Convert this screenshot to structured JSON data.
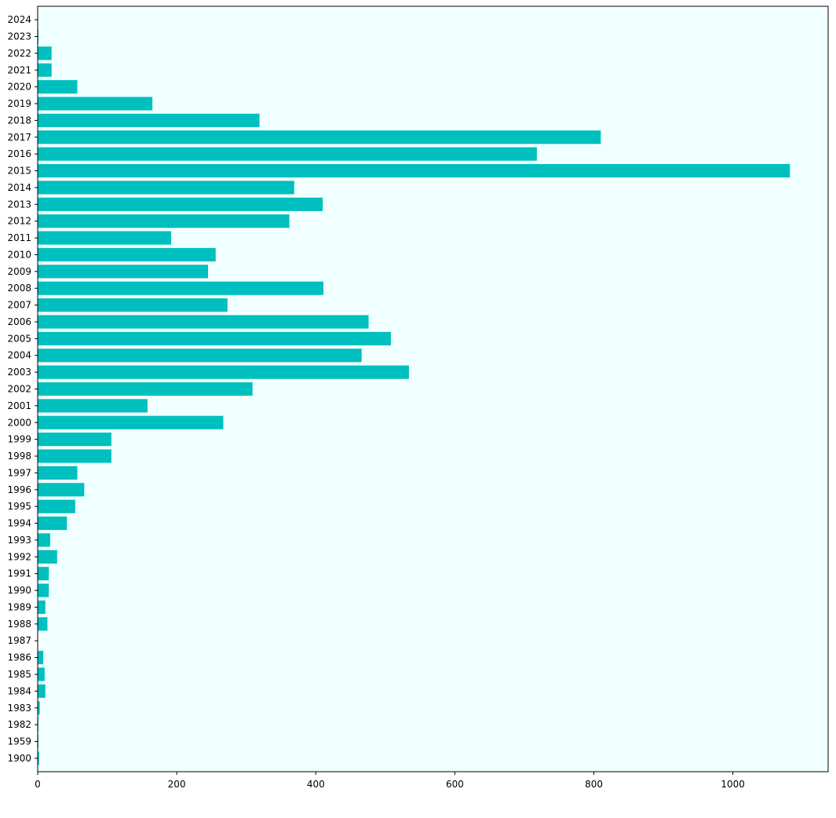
{
  "chart_data": {
    "type": "bar",
    "orientation": "horizontal",
    "categories": [
      "1900",
      "1959",
      "1982",
      "1983",
      "1984",
      "1985",
      "1986",
      "1987",
      "1988",
      "1989",
      "1990",
      "1991",
      "1992",
      "1993",
      "1994",
      "1995",
      "1996",
      "1997",
      "1998",
      "1999",
      "2000",
      "2001",
      "2002",
      "2003",
      "2004",
      "2005",
      "2006",
      "2007",
      "2008",
      "2009",
      "2010",
      "2011",
      "2012",
      "2013",
      "2014",
      "2015",
      "2016",
      "2017",
      "2018",
      "2019",
      "2020",
      "2021",
      "2022",
      "2023",
      "2024"
    ],
    "values": [
      2,
      1,
      1,
      3,
      11,
      10,
      8,
      0,
      14,
      11,
      16,
      16,
      28,
      18,
      42,
      54,
      67,
      57,
      106,
      106,
      267,
      158,
      309,
      534,
      466,
      508,
      476,
      273,
      411,
      245,
      256,
      192,
      362,
      410,
      369,
      1082,
      718,
      810,
      319,
      165,
      57,
      20,
      20,
      1,
      0
    ],
    "title": "",
    "xlabel": "",
    "ylabel": "",
    "xlim": [
      0,
      1137
    ],
    "xticks": [
      0,
      200,
      400,
      600,
      800,
      1000
    ],
    "bar_color": "#00bfbf",
    "background_color": "#f0ffff",
    "grid": false,
    "legend": "none"
  }
}
